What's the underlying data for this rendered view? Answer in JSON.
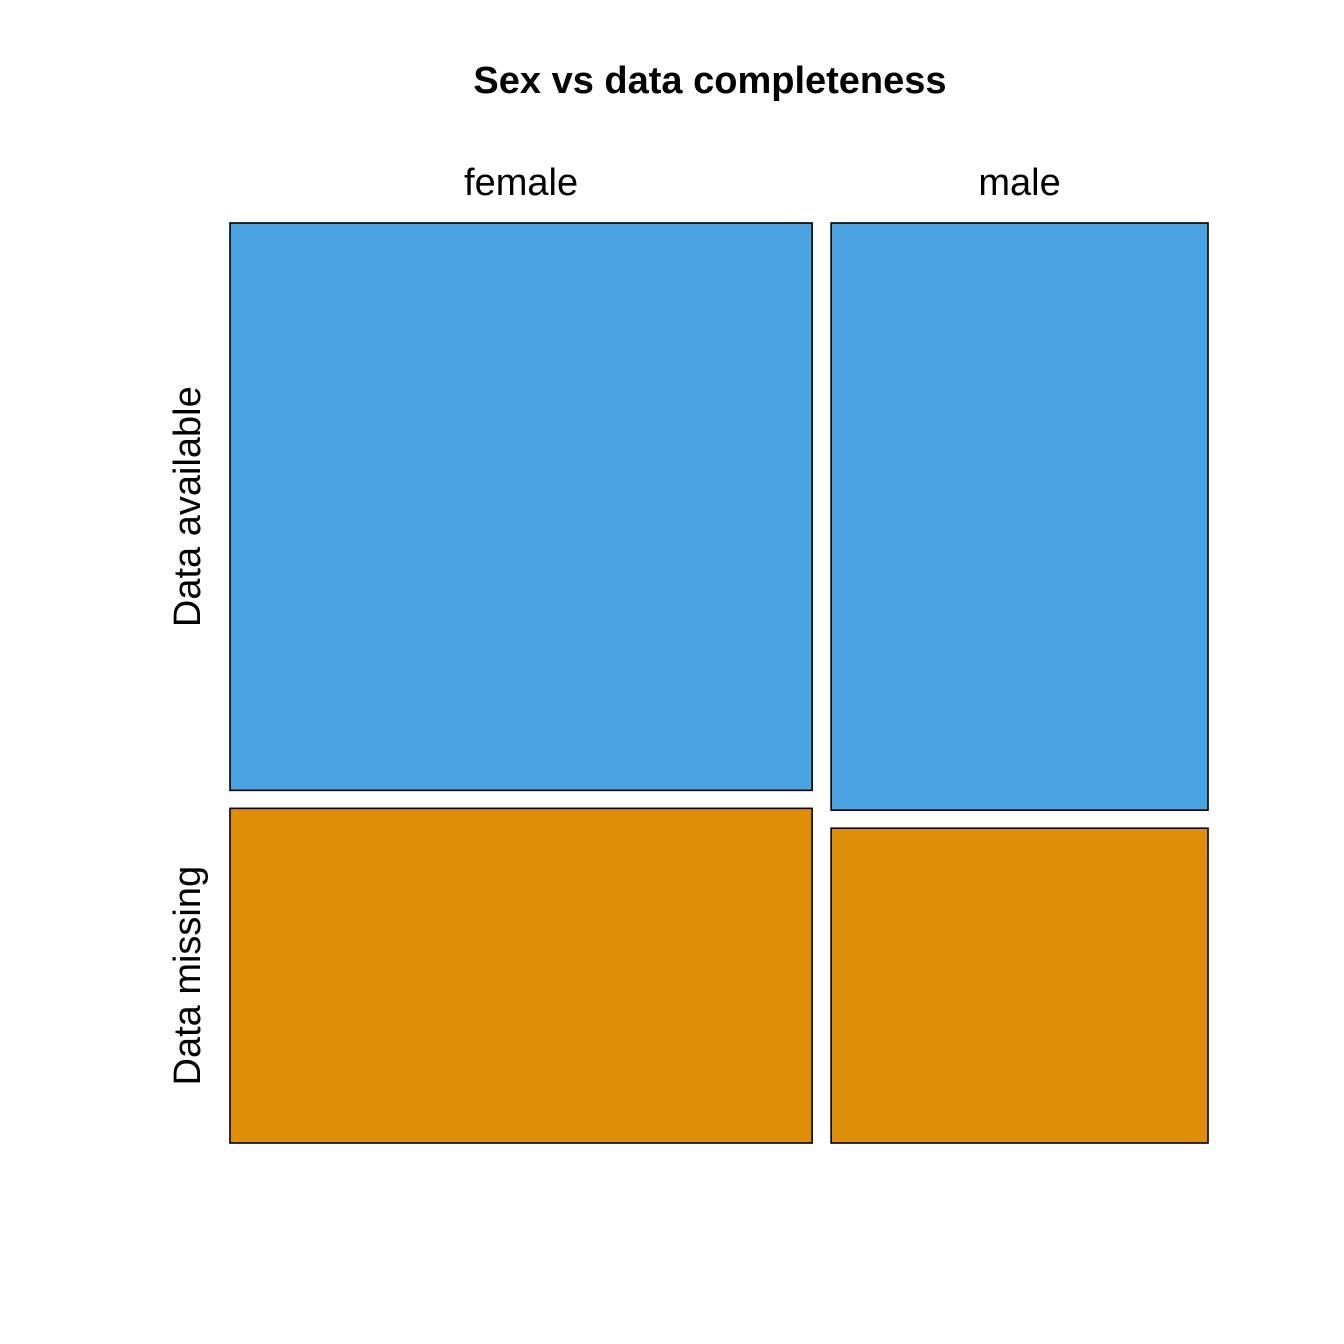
{
  "chart_data": {
    "type": "mosaic",
    "title": "Sex vs data completeness",
    "x_variable": "",
    "y_variable": "",
    "columns": [
      "female",
      "male"
    ],
    "rows": [
      "Data available",
      "Data missing"
    ],
    "column_shares": [
      0.607,
      0.393
    ],
    "cells": [
      {
        "column": "female",
        "row": "Data available",
        "share_within_column": 0.629
      },
      {
        "column": "female",
        "row": "Data missing",
        "share_within_column": 0.371
      },
      {
        "column": "male",
        "row": "Data available",
        "share_within_column": 0.651
      },
      {
        "column": "male",
        "row": "Data missing",
        "share_within_column": 0.349
      }
    ],
    "colors": {
      "Data available": "#4aa4e2",
      "Data missing": "#df8e0a"
    },
    "grid": false,
    "legend": "none"
  }
}
